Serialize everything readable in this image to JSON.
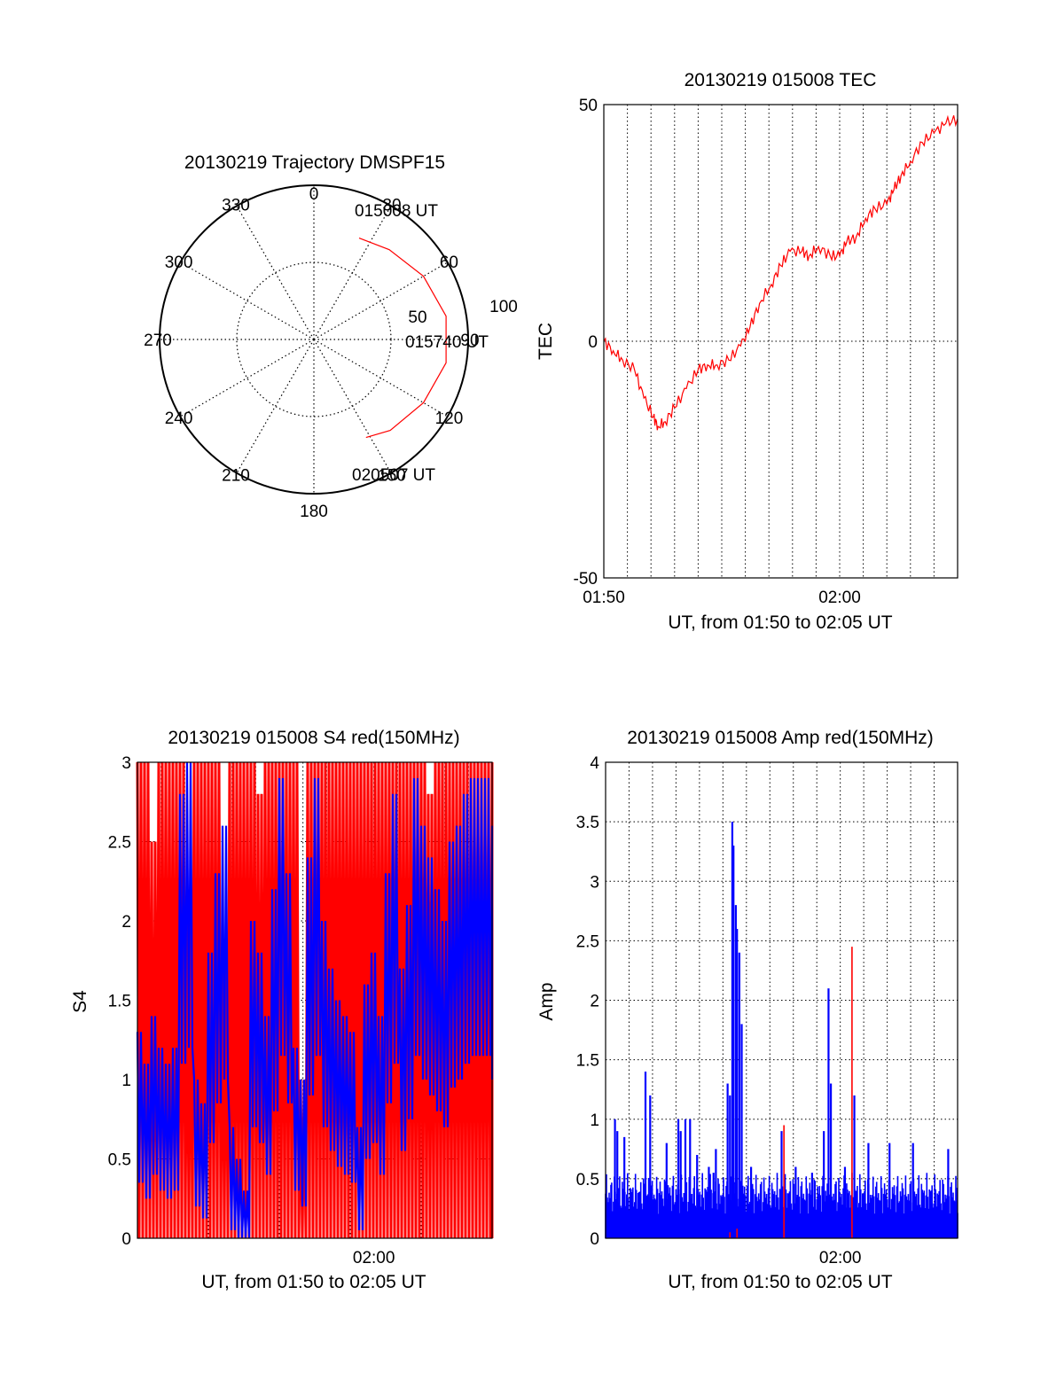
{
  "figure": {
    "background": "#ffffff",
    "red": "#ff0000",
    "blue": "#0000ff"
  },
  "chart_data": [
    {
      "id": "trajectory",
      "type": "polar",
      "title": "20130219 Trajectory DMSPF15",
      "azimuth_labels": [
        "0",
        "30",
        "60",
        "90",
        "120",
        "150",
        "180",
        "210",
        "240",
        "270",
        "300",
        "330"
      ],
      "radius_labels": [
        "50",
        "100"
      ],
      "rlim": [
        0,
        100
      ],
      "grid": true,
      "series": [
        {
          "color": "#ff0000",
          "points": [
            {
              "az": 24,
              "r": 72
            },
            {
              "az": 40,
              "r": 76
            },
            {
              "az": 60,
              "r": 82
            },
            {
              "az": 80,
              "r": 87
            },
            {
              "az": 100,
              "r": 87
            },
            {
              "az": 120,
              "r": 82
            },
            {
              "az": 140,
              "r": 77
            },
            {
              "az": 152,
              "r": 72
            }
          ]
        }
      ],
      "annotations": [
        "015008 UT",
        "015740 UT",
        "020507 UT"
      ]
    },
    {
      "id": "tec",
      "type": "line",
      "title": "20130219 015008 TEC",
      "xlabel": "UT, from 01:50 to 02:05 UT",
      "ylabel": "TEC",
      "xtick_labels": [
        "01:50",
        "02:00"
      ],
      "ytick_labels": [
        "-50",
        "0",
        "50"
      ],
      "xlim_minutes": [
        0,
        15
      ],
      "ylim": [
        -50,
        50
      ],
      "grid": true,
      "series": [
        {
          "color": "#ff0000",
          "x_minutes": [
            0.0,
            0.4,
            0.8,
            1.3,
            1.7,
            2.1,
            2.3,
            2.6,
            3.0,
            3.5,
            4.0,
            4.4,
            4.8,
            5.3,
            5.8,
            6.2,
            6.6,
            7.1,
            7.5,
            7.9,
            8.4,
            8.7,
            9.1,
            9.6,
            10.0,
            10.3,
            10.7,
            11.1,
            11.5,
            12.0,
            12.3,
            12.6,
            13.0,
            13.5,
            14.0,
            14.5,
            15.0
          ],
          "values": [
            0,
            -2,
            -4,
            -6,
            -12,
            -16,
            -18,
            -17,
            -14,
            -10,
            -6,
            -5,
            -5,
            -4,
            -1,
            3,
            8,
            12,
            16,
            19,
            19,
            18,
            20,
            18,
            18,
            21,
            22,
            26,
            28,
            29,
            32,
            35,
            38,
            42,
            44,
            46,
            47
          ]
        }
      ]
    },
    {
      "id": "s4",
      "type": "line",
      "title": "20130219 015008 S4 red(150MHz)",
      "xlabel": "UT, from 01:50 to 02:05 UT",
      "ylabel": "S4",
      "xtick_labels": [
        "02:00"
      ],
      "ytick_labels": [
        "0",
        "0.5",
        "1",
        "1.5",
        "2",
        "2.5",
        "3"
      ],
      "xlim_minutes": [
        0,
        15
      ],
      "ylim": [
        0,
        3
      ],
      "grid": true,
      "series": [
        {
          "color": "#0000ff",
          "x_minutes": [
            0.0,
            0.3,
            0.6,
            0.9,
            1.2,
            1.5,
            1.8,
            2.1,
            2.4,
            2.7,
            3.0,
            3.3,
            3.6,
            3.9,
            4.2,
            4.5,
            4.8,
            5.1,
            5.4,
            5.7,
            6.0,
            6.3,
            6.6,
            6.9,
            7.2,
            7.5,
            7.8,
            8.1,
            8.4,
            8.7,
            9.0,
            9.3,
            9.6,
            9.9,
            10.2,
            10.5,
            10.8,
            11.1,
            11.4,
            11.7,
            12.0,
            12.3,
            12.6,
            12.9,
            13.2,
            13.5,
            13.8,
            14.1,
            14.4,
            14.7,
            15.0
          ],
          "values": [
            1.3,
            1.1,
            1.4,
            1.2,
            1.1,
            1.2,
            2.8,
            3.0,
            1.0,
            0.85,
            1.8,
            2.3,
            2.6,
            0.7,
            0.5,
            0.3,
            2.0,
            1.8,
            1.4,
            2.2,
            2.9,
            2.3,
            1.2,
            1.0,
            2.4,
            2.9,
            2.0,
            1.7,
            1.5,
            1.4,
            1.3,
            0.7,
            1.6,
            1.8,
            1.4,
            2.3,
            2.8,
            1.7,
            2.1,
            2.9,
            2.6,
            2.4,
            2.2,
            2.0,
            2.5,
            2.6,
            2.8,
            2.9,
            2.9,
            2.9,
            2.6
          ]
        },
        {
          "color": "#ff0000",
          "x_minutes": [
            0.0,
            0.3,
            0.6,
            0.9,
            1.2,
            1.5,
            1.8,
            2.1,
            2.4,
            2.7,
            3.0,
            3.3,
            3.6,
            3.9,
            4.2,
            4.5,
            4.8,
            5.1,
            5.4,
            5.7,
            6.0,
            6.3,
            6.6,
            6.9,
            7.2,
            7.5,
            7.8,
            8.1,
            8.4,
            8.7,
            9.0,
            9.3,
            9.6,
            9.9,
            10.2,
            10.5,
            10.8,
            11.1,
            11.4,
            11.7,
            12.0,
            12.3,
            12.6,
            12.9,
            13.2,
            13.5,
            13.8,
            14.1,
            14.4,
            14.7,
            15.0
          ],
          "values": [
            3.0,
            3.0,
            2.5,
            3.0,
            3.0,
            3.0,
            3.0,
            2.2,
            3.0,
            3.0,
            3.0,
            3.0,
            2.0,
            3.0,
            3.0,
            3.0,
            3.0,
            2.8,
            3.0,
            3.0,
            3.0,
            3.0,
            3.0,
            1.0,
            3.0,
            3.0,
            3.0,
            3.0,
            3.0,
            3.0,
            3.0,
            3.0,
            3.0,
            3.0,
            3.0,
            3.0,
            3.0,
            3.0,
            3.0,
            3.0,
            3.0,
            2.8,
            3.0,
            3.0,
            3.0,
            3.0,
            3.0,
            3.0,
            3.0,
            3.0,
            3.0
          ]
        }
      ]
    },
    {
      "id": "amp",
      "type": "line",
      "title": "20130219 015008 Amp red(150MHz)",
      "xlabel": "UT, from 01:50 to 02:05 UT",
      "ylabel": "Amp",
      "xtick_labels": [
        "02:00"
      ],
      "ytick_labels": [
        "0",
        "0.5",
        "1",
        "1.5",
        "2",
        "2.5",
        "3",
        "3.5",
        "4"
      ],
      "xlim_minutes": [
        0,
        15
      ],
      "ylim": [
        0,
        4
      ],
      "grid": true,
      "peaks": [
        {
          "color": "#0000ff",
          "x_minutes": 0.4,
          "value": 1.0
        },
        {
          "color": "#0000ff",
          "x_minutes": 0.5,
          "value": 0.9
        },
        {
          "color": "#0000ff",
          "x_minutes": 0.8,
          "value": 0.85
        },
        {
          "color": "#0000ff",
          "x_minutes": 1.7,
          "value": 1.4
        },
        {
          "color": "#0000ff",
          "x_minutes": 1.9,
          "value": 1.2
        },
        {
          "color": "#0000ff",
          "x_minutes": 2.6,
          "value": 0.8
        },
        {
          "color": "#0000ff",
          "x_minutes": 3.2,
          "value": 0.9
        },
        {
          "color": "#0000ff",
          "x_minutes": 3.9,
          "value": 0.7
        },
        {
          "color": "#0000ff",
          "x_minutes": 4.4,
          "value": 0.6
        },
        {
          "color": "#0000ff",
          "x_minutes": 4.6,
          "value": 0.55
        },
        {
          "color": "#0000ff",
          "x_minutes": 3.1,
          "value": 1.0
        },
        {
          "color": "#0000ff",
          "x_minutes": 3.4,
          "value": 1.0
        },
        {
          "color": "#0000ff",
          "x_minutes": 3.6,
          "value": 1.0
        },
        {
          "color": "#0000ff",
          "x_minutes": 4.7,
          "value": 0.75
        },
        {
          "color": "#0000ff",
          "x_minutes": 5.2,
          "value": 1.3
        },
        {
          "color": "#0000ff",
          "x_minutes": 5.3,
          "value": 1.2
        },
        {
          "color": "#0000ff",
          "x_minutes": 5.4,
          "value": 3.5
        },
        {
          "color": "#0000ff",
          "x_minutes": 5.45,
          "value": 3.3
        },
        {
          "color": "#0000ff",
          "x_minutes": 5.55,
          "value": 2.8
        },
        {
          "color": "#0000ff",
          "x_minutes": 5.6,
          "value": 2.6
        },
        {
          "color": "#0000ff",
          "x_minutes": 5.7,
          "value": 2.4
        },
        {
          "color": "#0000ff",
          "x_minutes": 5.8,
          "value": 1.8
        },
        {
          "color": "#0000ff",
          "x_minutes": 6.2,
          "value": 0.6
        },
        {
          "color": "#0000ff",
          "x_minutes": 7.5,
          "value": 0.9
        },
        {
          "color": "#0000ff",
          "x_minutes": 8.1,
          "value": 0.6
        },
        {
          "color": "#0000ff",
          "x_minutes": 8.8,
          "value": 0.55
        },
        {
          "color": "#0000ff",
          "x_minutes": 9.3,
          "value": 0.9
        },
        {
          "color": "#0000ff",
          "x_minutes": 9.5,
          "value": 2.1
        },
        {
          "color": "#0000ff",
          "x_minutes": 9.6,
          "value": 1.3
        },
        {
          "color": "#0000ff",
          "x_minutes": 10.6,
          "value": 1.2
        },
        {
          "color": "#0000ff",
          "x_minutes": 10.2,
          "value": 0.6
        },
        {
          "color": "#0000ff",
          "x_minutes": 11.2,
          "value": 0.8
        },
        {
          "color": "#0000ff",
          "x_minutes": 12.1,
          "value": 0.8
        },
        {
          "color": "#0000ff",
          "x_minutes": 13.1,
          "value": 0.8
        },
        {
          "color": "#0000ff",
          "x_minutes": 14.6,
          "value": 0.75
        },
        {
          "color": "#ff0000",
          "x_minutes": 5.3,
          "value": 0.05
        },
        {
          "color": "#ff0000",
          "x_minutes": 5.6,
          "value": 0.08
        },
        {
          "color": "#ff0000",
          "x_minutes": 7.6,
          "value": 0.95
        },
        {
          "color": "#ff0000",
          "x_minutes": 10.5,
          "value": 2.45
        }
      ],
      "baseline": {
        "color": "#0000ff",
        "min": 0.2,
        "max": 0.55
      }
    }
  ]
}
